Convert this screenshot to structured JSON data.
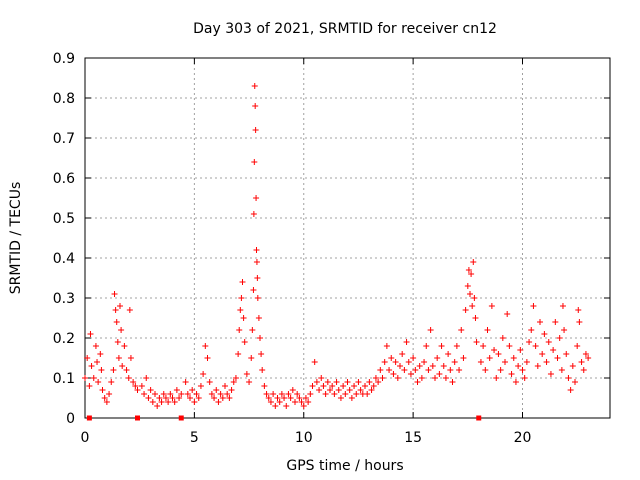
{
  "chart_data": {
    "type": "scatter",
    "title": "Day 303 of 2021, SRMTID for receiver cn12",
    "xlabel": "GPS time / hours",
    "ylabel": "SRMTID / TECUs",
    "xlim": [
      0,
      24
    ],
    "ylim": [
      0,
      0.9
    ],
    "xticks": [
      0,
      5,
      10,
      15,
      20
    ],
    "yticks": [
      0,
      0.1,
      0.2,
      0.3,
      0.4,
      0.5,
      0.6,
      0.7,
      0.8,
      0.9
    ],
    "xtick_labels": [
      "0",
      "5",
      "10",
      "15",
      "20"
    ],
    "ytick_labels": [
      "0",
      "0.1",
      "0.2",
      "0.3",
      "0.4",
      "0.5",
      "0.6",
      "0.7",
      "0.8",
      "0.9"
    ],
    "grid": true,
    "marker": "+",
    "color": "#ff0000",
    "series": [
      {
        "name": "SRMTID",
        "points": [
          [
            0.0,
            0.1
          ],
          [
            0.1,
            0.15
          ],
          [
            0.2,
            0.08
          ],
          [
            0.25,
            0.21
          ],
          [
            0.3,
            0.13
          ],
          [
            0.4,
            0.1
          ],
          [
            0.5,
            0.18
          ],
          [
            0.55,
            0.14
          ],
          [
            0.6,
            0.09
          ],
          [
            0.7,
            0.16
          ],
          [
            0.75,
            0.12
          ],
          [
            0.8,
            0.07
          ],
          [
            0.9,
            0.05
          ],
          [
            1.0,
            0.04
          ],
          [
            1.1,
            0.06
          ],
          [
            1.2,
            0.09
          ],
          [
            1.3,
            0.12
          ],
          [
            1.35,
            0.31
          ],
          [
            1.4,
            0.27
          ],
          [
            1.45,
            0.24
          ],
          [
            1.5,
            0.19
          ],
          [
            1.55,
            0.15
          ],
          [
            1.6,
            0.28
          ],
          [
            1.65,
            0.22
          ],
          [
            1.7,
            0.13
          ],
          [
            1.8,
            0.18
          ],
          [
            1.9,
            0.12
          ],
          [
            2.0,
            0.1
          ],
          [
            2.05,
            0.27
          ],
          [
            2.1,
            0.15
          ],
          [
            2.2,
            0.09
          ],
          [
            2.3,
            0.08
          ],
          [
            2.4,
            0.07
          ],
          [
            2.6,
            0.08
          ],
          [
            2.7,
            0.06
          ],
          [
            2.8,
            0.1
          ],
          [
            2.9,
            0.05
          ],
          [
            3.0,
            0.07
          ],
          [
            3.1,
            0.04
          ],
          [
            3.2,
            0.06
          ],
          [
            3.3,
            0.03
          ],
          [
            3.4,
            0.05
          ],
          [
            3.5,
            0.04
          ],
          [
            3.6,
            0.06
          ],
          [
            3.7,
            0.05
          ],
          [
            3.8,
            0.04
          ],
          [
            3.9,
            0.06
          ],
          [
            4.0,
            0.05
          ],
          [
            4.1,
            0.04
          ],
          [
            4.2,
            0.07
          ],
          [
            4.3,
            0.05
          ],
          [
            4.4,
            0.06
          ],
          [
            4.6,
            0.09
          ],
          [
            4.7,
            0.06
          ],
          [
            4.8,
            0.05
          ],
          [
            4.9,
            0.07
          ],
          [
            5.0,
            0.04
          ],
          [
            5.1,
            0.06
          ],
          [
            5.2,
            0.05
          ],
          [
            5.3,
            0.08
          ],
          [
            5.4,
            0.11
          ],
          [
            5.5,
            0.18
          ],
          [
            5.6,
            0.15
          ],
          [
            5.7,
            0.09
          ],
          [
            5.8,
            0.06
          ],
          [
            5.9,
            0.05
          ],
          [
            6.0,
            0.07
          ],
          [
            6.1,
            0.04
          ],
          [
            6.2,
            0.06
          ],
          [
            6.3,
            0.05
          ],
          [
            6.4,
            0.08
          ],
          [
            6.5,
            0.06
          ],
          [
            6.6,
            0.05
          ],
          [
            6.7,
            0.07
          ],
          [
            6.8,
            0.09
          ],
          [
            6.9,
            0.1
          ],
          [
            7.0,
            0.16
          ],
          [
            7.05,
            0.22
          ],
          [
            7.1,
            0.27
          ],
          [
            7.15,
            0.3
          ],
          [
            7.2,
            0.34
          ],
          [
            7.25,
            0.25
          ],
          [
            7.3,
            0.19
          ],
          [
            7.4,
            0.11
          ],
          [
            7.5,
            0.09
          ],
          [
            7.6,
            0.15
          ],
          [
            7.65,
            0.22
          ],
          [
            7.7,
            0.32
          ],
          [
            7.72,
            0.51
          ],
          [
            7.74,
            0.64
          ],
          [
            7.76,
            0.83
          ],
          [
            7.78,
            0.78
          ],
          [
            7.8,
            0.72
          ],
          [
            7.82,
            0.55
          ],
          [
            7.84,
            0.42
          ],
          [
            7.86,
            0.39
          ],
          [
            7.88,
            0.35
          ],
          [
            7.9,
            0.3
          ],
          [
            7.95,
            0.25
          ],
          [
            8.0,
            0.2
          ],
          [
            8.05,
            0.16
          ],
          [
            8.1,
            0.12
          ],
          [
            8.2,
            0.08
          ],
          [
            8.3,
            0.06
          ],
          [
            8.4,
            0.05
          ],
          [
            8.5,
            0.04
          ],
          [
            8.6,
            0.06
          ],
          [
            8.7,
            0.03
          ],
          [
            8.8,
            0.05
          ],
          [
            8.9,
            0.04
          ],
          [
            9.0,
            0.06
          ],
          [
            9.1,
            0.05
          ],
          [
            9.2,
            0.03
          ],
          [
            9.3,
            0.06
          ],
          [
            9.4,
            0.05
          ],
          [
            9.5,
            0.07
          ],
          [
            9.6,
            0.04
          ],
          [
            9.7,
            0.06
          ],
          [
            9.8,
            0.05
          ],
          [
            9.9,
            0.04
          ],
          [
            10.0,
            0.03
          ],
          [
            10.1,
            0.05
          ],
          [
            10.2,
            0.04
          ],
          [
            10.3,
            0.06
          ],
          [
            10.4,
            0.08
          ],
          [
            10.5,
            0.14
          ],
          [
            10.6,
            0.09
          ],
          [
            10.7,
            0.07
          ],
          [
            10.8,
            0.1
          ],
          [
            10.9,
            0.08
          ],
          [
            11.0,
            0.06
          ],
          [
            11.1,
            0.09
          ],
          [
            11.2,
            0.07
          ],
          [
            11.3,
            0.08
          ],
          [
            11.4,
            0.06
          ],
          [
            11.5,
            0.09
          ],
          [
            11.6,
            0.07
          ],
          [
            11.7,
            0.05
          ],
          [
            11.8,
            0.08
          ],
          [
            11.9,
            0.06
          ],
          [
            12.0,
            0.09
          ],
          [
            12.1,
            0.07
          ],
          [
            12.2,
            0.05
          ],
          [
            12.3,
            0.08
          ],
          [
            12.4,
            0.06
          ],
          [
            12.5,
            0.09
          ],
          [
            12.6,
            0.07
          ],
          [
            12.7,
            0.06
          ],
          [
            12.8,
            0.08
          ],
          [
            12.9,
            0.06
          ],
          [
            13.0,
            0.09
          ],
          [
            13.1,
            0.07
          ],
          [
            13.2,
            0.08
          ],
          [
            13.3,
            0.1
          ],
          [
            13.4,
            0.09
          ],
          [
            13.5,
            0.12
          ],
          [
            13.6,
            0.1
          ],
          [
            13.7,
            0.14
          ],
          [
            13.8,
            0.18
          ],
          [
            13.9,
            0.12
          ],
          [
            14.0,
            0.15
          ],
          [
            14.1,
            0.11
          ],
          [
            14.2,
            0.14
          ],
          [
            14.3,
            0.1
          ],
          [
            14.4,
            0.13
          ],
          [
            14.5,
            0.16
          ],
          [
            14.6,
            0.12
          ],
          [
            14.7,
            0.19
          ],
          [
            14.8,
            0.14
          ],
          [
            14.9,
            0.11
          ],
          [
            15.0,
            0.15
          ],
          [
            15.1,
            0.12
          ],
          [
            15.2,
            0.09
          ],
          [
            15.3,
            0.13
          ],
          [
            15.4,
            0.1
          ],
          [
            15.5,
            0.14
          ],
          [
            15.6,
            0.18
          ],
          [
            15.7,
            0.12
          ],
          [
            15.8,
            0.22
          ],
          [
            15.9,
            0.13
          ],
          [
            16.0,
            0.1
          ],
          [
            16.1,
            0.15
          ],
          [
            16.2,
            0.11
          ],
          [
            16.3,
            0.18
          ],
          [
            16.4,
            0.13
          ],
          [
            16.5,
            0.1
          ],
          [
            16.6,
            0.16
          ],
          [
            16.7,
            0.12
          ],
          [
            16.8,
            0.09
          ],
          [
            16.9,
            0.14
          ],
          [
            17.0,
            0.18
          ],
          [
            17.1,
            0.12
          ],
          [
            17.2,
            0.22
          ],
          [
            17.3,
            0.15
          ],
          [
            17.4,
            0.27
          ],
          [
            17.5,
            0.33
          ],
          [
            17.55,
            0.37
          ],
          [
            17.6,
            0.31
          ],
          [
            17.65,
            0.36
          ],
          [
            17.7,
            0.28
          ],
          [
            17.75,
            0.39
          ],
          [
            17.8,
            0.3
          ],
          [
            17.85,
            0.25
          ],
          [
            17.9,
            0.19
          ],
          [
            18.1,
            0.14
          ],
          [
            18.2,
            0.18
          ],
          [
            18.3,
            0.12
          ],
          [
            18.4,
            0.22
          ],
          [
            18.5,
            0.15
          ],
          [
            18.6,
            0.28
          ],
          [
            18.7,
            0.17
          ],
          [
            18.8,
            0.1
          ],
          [
            18.9,
            0.16
          ],
          [
            19.0,
            0.12
          ],
          [
            19.1,
            0.2
          ],
          [
            19.2,
            0.14
          ],
          [
            19.3,
            0.26
          ],
          [
            19.4,
            0.18
          ],
          [
            19.5,
            0.11
          ],
          [
            19.6,
            0.15
          ],
          [
            19.7,
            0.09
          ],
          [
            19.8,
            0.13
          ],
          [
            19.9,
            0.17
          ],
          [
            20.0,
            0.12
          ],
          [
            20.1,
            0.1
          ],
          [
            20.2,
            0.14
          ],
          [
            20.3,
            0.19
          ],
          [
            20.4,
            0.22
          ],
          [
            20.5,
            0.28
          ],
          [
            20.6,
            0.18
          ],
          [
            20.7,
            0.13
          ],
          [
            20.8,
            0.24
          ],
          [
            20.9,
            0.16
          ],
          [
            21.0,
            0.21
          ],
          [
            21.1,
            0.14
          ],
          [
            21.2,
            0.19
          ],
          [
            21.3,
            0.11
          ],
          [
            21.4,
            0.17
          ],
          [
            21.5,
            0.24
          ],
          [
            21.6,
            0.15
          ],
          [
            21.7,
            0.2
          ],
          [
            21.8,
            0.12
          ],
          [
            21.85,
            0.28
          ],
          [
            21.9,
            0.22
          ],
          [
            22.0,
            0.16
          ],
          [
            22.1,
            0.1
          ],
          [
            22.2,
            0.07
          ],
          [
            22.3,
            0.13
          ],
          [
            22.4,
            0.09
          ],
          [
            22.5,
            0.18
          ],
          [
            22.55,
            0.27
          ],
          [
            22.6,
            0.24
          ],
          [
            22.7,
            0.14
          ],
          [
            22.8,
            0.12
          ],
          [
            22.9,
            0.16
          ],
          [
            23.0,
            0.15
          ]
        ]
      }
    ],
    "gap_markers_x": [
      0.2,
      2.4,
      4.4,
      18.0
    ]
  }
}
